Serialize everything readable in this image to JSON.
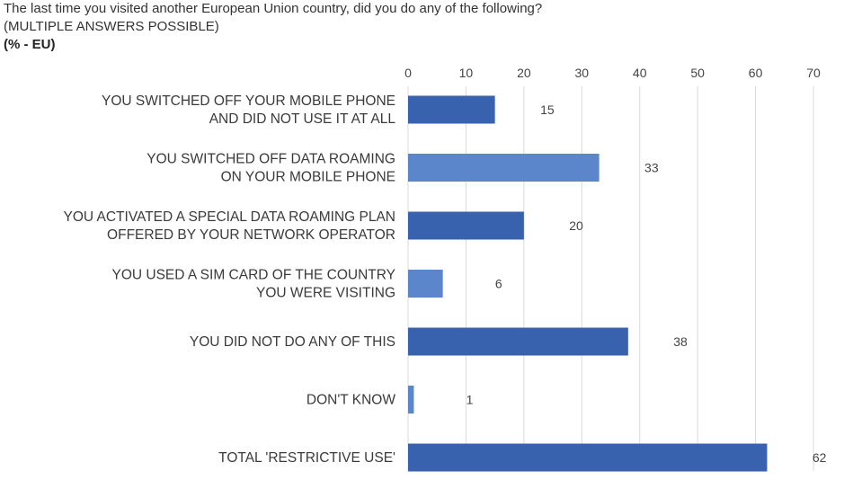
{
  "header": {
    "title": "The last time you visited another European Union country, did you do any of the following?",
    "subtitle": "(MULTIPLE ANSWERS POSSIBLE)",
    "unit_label": "(% - EU)"
  },
  "colors": {
    "bar_dark": "#3862ae",
    "bar_light": "#5b86cc",
    "gridline": "#d9d9d9"
  },
  "chart_data": {
    "type": "bar",
    "orientation": "horizontal",
    "title": "The last time you visited another European Union country, did you do any of the following?",
    "subtitle": "(MULTIPLE ANSWERS POSSIBLE)",
    "xlabel": "",
    "ylabel": "",
    "xlim": [
      0,
      70
    ],
    "ticks": [
      0,
      10,
      20,
      30,
      40,
      50,
      60,
      70
    ],
    "grid": true,
    "axis_position": "top",
    "categories": [
      [
        "YOU SWITCHED OFF YOUR MOBILE PHONE",
        "AND DID NOT USE IT AT ALL"
      ],
      [
        "YOU SWITCHED OFF DATA ROAMING",
        "ON YOUR MOBILE PHONE"
      ],
      [
        "YOU ACTIVATED A SPECIAL DATA ROAMING PLAN",
        "OFFERED BY YOUR NETWORK OPERATOR"
      ],
      [
        "YOU USED A SIM CARD OF THE COUNTRY",
        "YOU WERE VISITING"
      ],
      [
        "YOU DID NOT DO ANY OF THIS"
      ],
      [
        "DON'T KNOW"
      ],
      [
        "TOTAL 'RESTRICTIVE USE'"
      ]
    ],
    "values": [
      15,
      33,
      20,
      6,
      38,
      1,
      62
    ],
    "bar_colors": [
      "#3862ae",
      "#5b86cc",
      "#3862ae",
      "#5b86cc",
      "#3862ae",
      "#5b86cc",
      "#3862ae"
    ]
  }
}
